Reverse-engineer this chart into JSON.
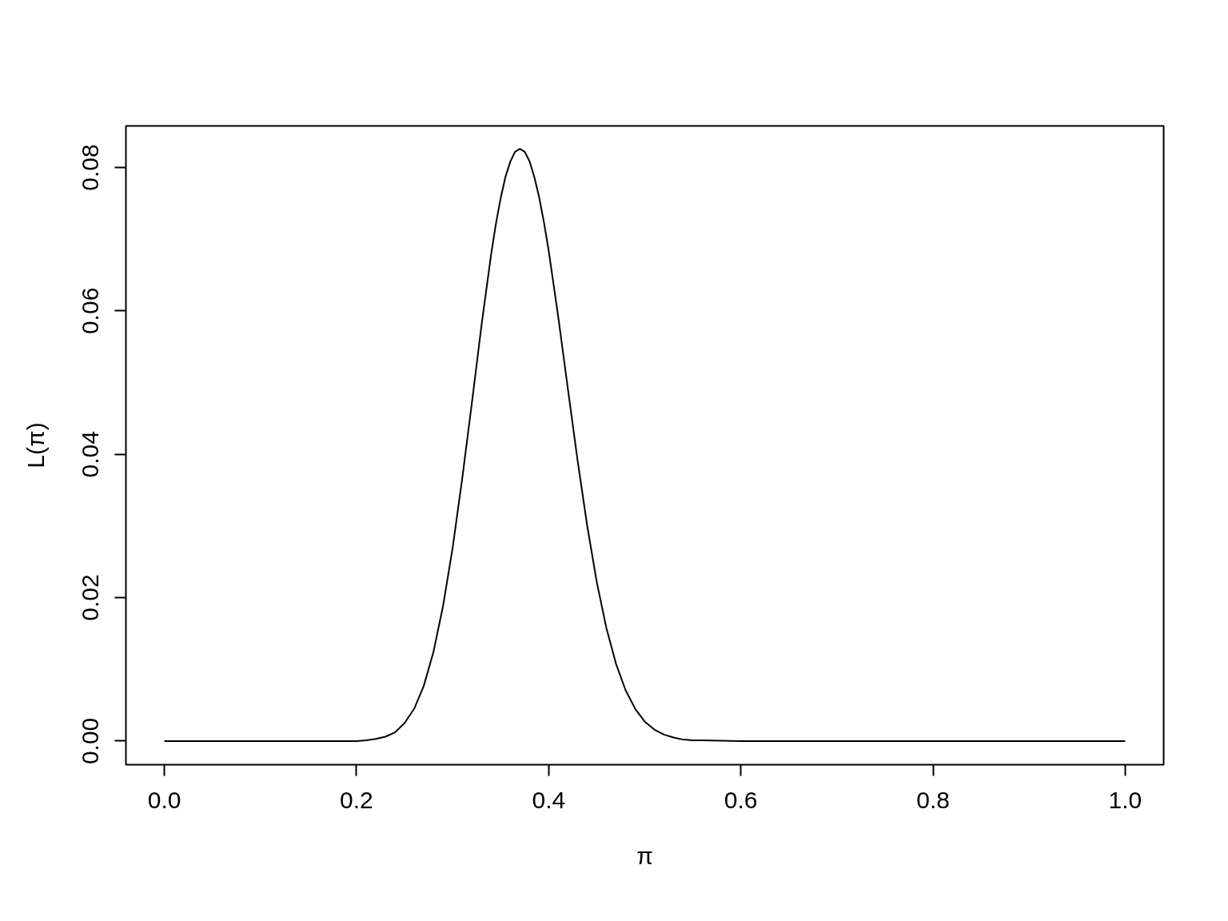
{
  "chart_data": {
    "type": "line",
    "xlabel": "π",
    "ylabel": "L(π)",
    "x": [
      0,
      0.1,
      0.15,
      0.2,
      0.21,
      0.22,
      0.23,
      0.24,
      0.25,
      0.26,
      0.27,
      0.28,
      0.29,
      0.3,
      0.31,
      0.32,
      0.33,
      0.34,
      0.345,
      0.35,
      0.355,
      0.36,
      0.365,
      0.37,
      0.375,
      0.38,
      0.385,
      0.39,
      0.395,
      0.4,
      0.41,
      0.42,
      0.43,
      0.44,
      0.45,
      0.46,
      0.47,
      0.48,
      0.49,
      0.5,
      0.51,
      0.52,
      0.53,
      0.54,
      0.55,
      0.56,
      0.6,
      0.7,
      0.8,
      0.9,
      1.0
    ],
    "series": [
      {
        "color": "#000000",
        "values": [
          0,
          0,
          0,
          0,
          0.0001,
          0.0003,
          0.0006,
          0.0012,
          0.0025,
          0.0045,
          0.0077,
          0.0124,
          0.0188,
          0.0269,
          0.0366,
          0.0471,
          0.0579,
          0.0678,
          0.0721,
          0.0757,
          0.0787,
          0.0808,
          0.0822,
          0.0826,
          0.0822,
          0.0809,
          0.0787,
          0.0759,
          0.0724,
          0.0684,
          0.0591,
          0.0491,
          0.0392,
          0.0301,
          0.0222,
          0.0158,
          0.0108,
          0.0071,
          0.0045,
          0.0027,
          0.0016,
          0.0009,
          0.0005,
          0.0002,
          0.0001,
          0.0001,
          0,
          0,
          0,
          0,
          0
        ]
      }
    ],
    "xlim": [
      -0.04,
      1.04
    ],
    "ylim": [
      -0.0033,
      0.0858
    ],
    "xticks": [
      {
        "value": 0,
        "label": "0.0"
      },
      0.2,
      0.4,
      0.6,
      0.8,
      {
        "value": 1,
        "label": "1.0"
      }
    ],
    "yticks": [
      {
        "value": 0,
        "label": "0.00"
      },
      0.02,
      0.04,
      0.06,
      0.08
    ]
  }
}
